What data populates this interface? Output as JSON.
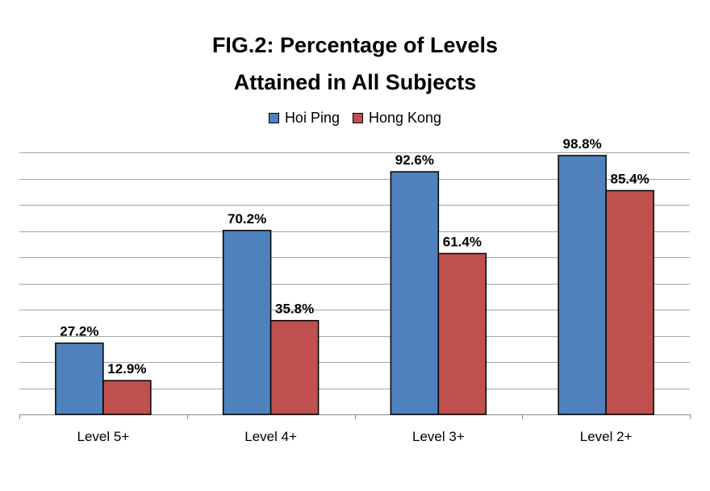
{
  "chart_data": {
    "type": "bar",
    "title_line1": "FIG.2: Percentage of Levels",
    "title_line2": "Attained in All Subjects",
    "categories": [
      "Level 5+",
      "Level 4+",
      "Level 3+",
      "Level 2+"
    ],
    "series": [
      {
        "name": "Hoi Ping",
        "color": "#4f81bd",
        "values": [
          27.2,
          70.2,
          92.6,
          98.8
        ],
        "labels": [
          "27.2%",
          "70.2%",
          "92.6%",
          "98.8%"
        ]
      },
      {
        "name": "Hong Kong",
        "color": "#c0504d",
        "values": [
          12.9,
          35.8,
          61.4,
          85.4
        ],
        "labels": [
          "12.9%",
          "35.8%",
          "61.4%",
          "85.4%"
        ]
      }
    ],
    "ylim": [
      0,
      100
    ],
    "grid": true,
    "legend_position": "top"
  }
}
